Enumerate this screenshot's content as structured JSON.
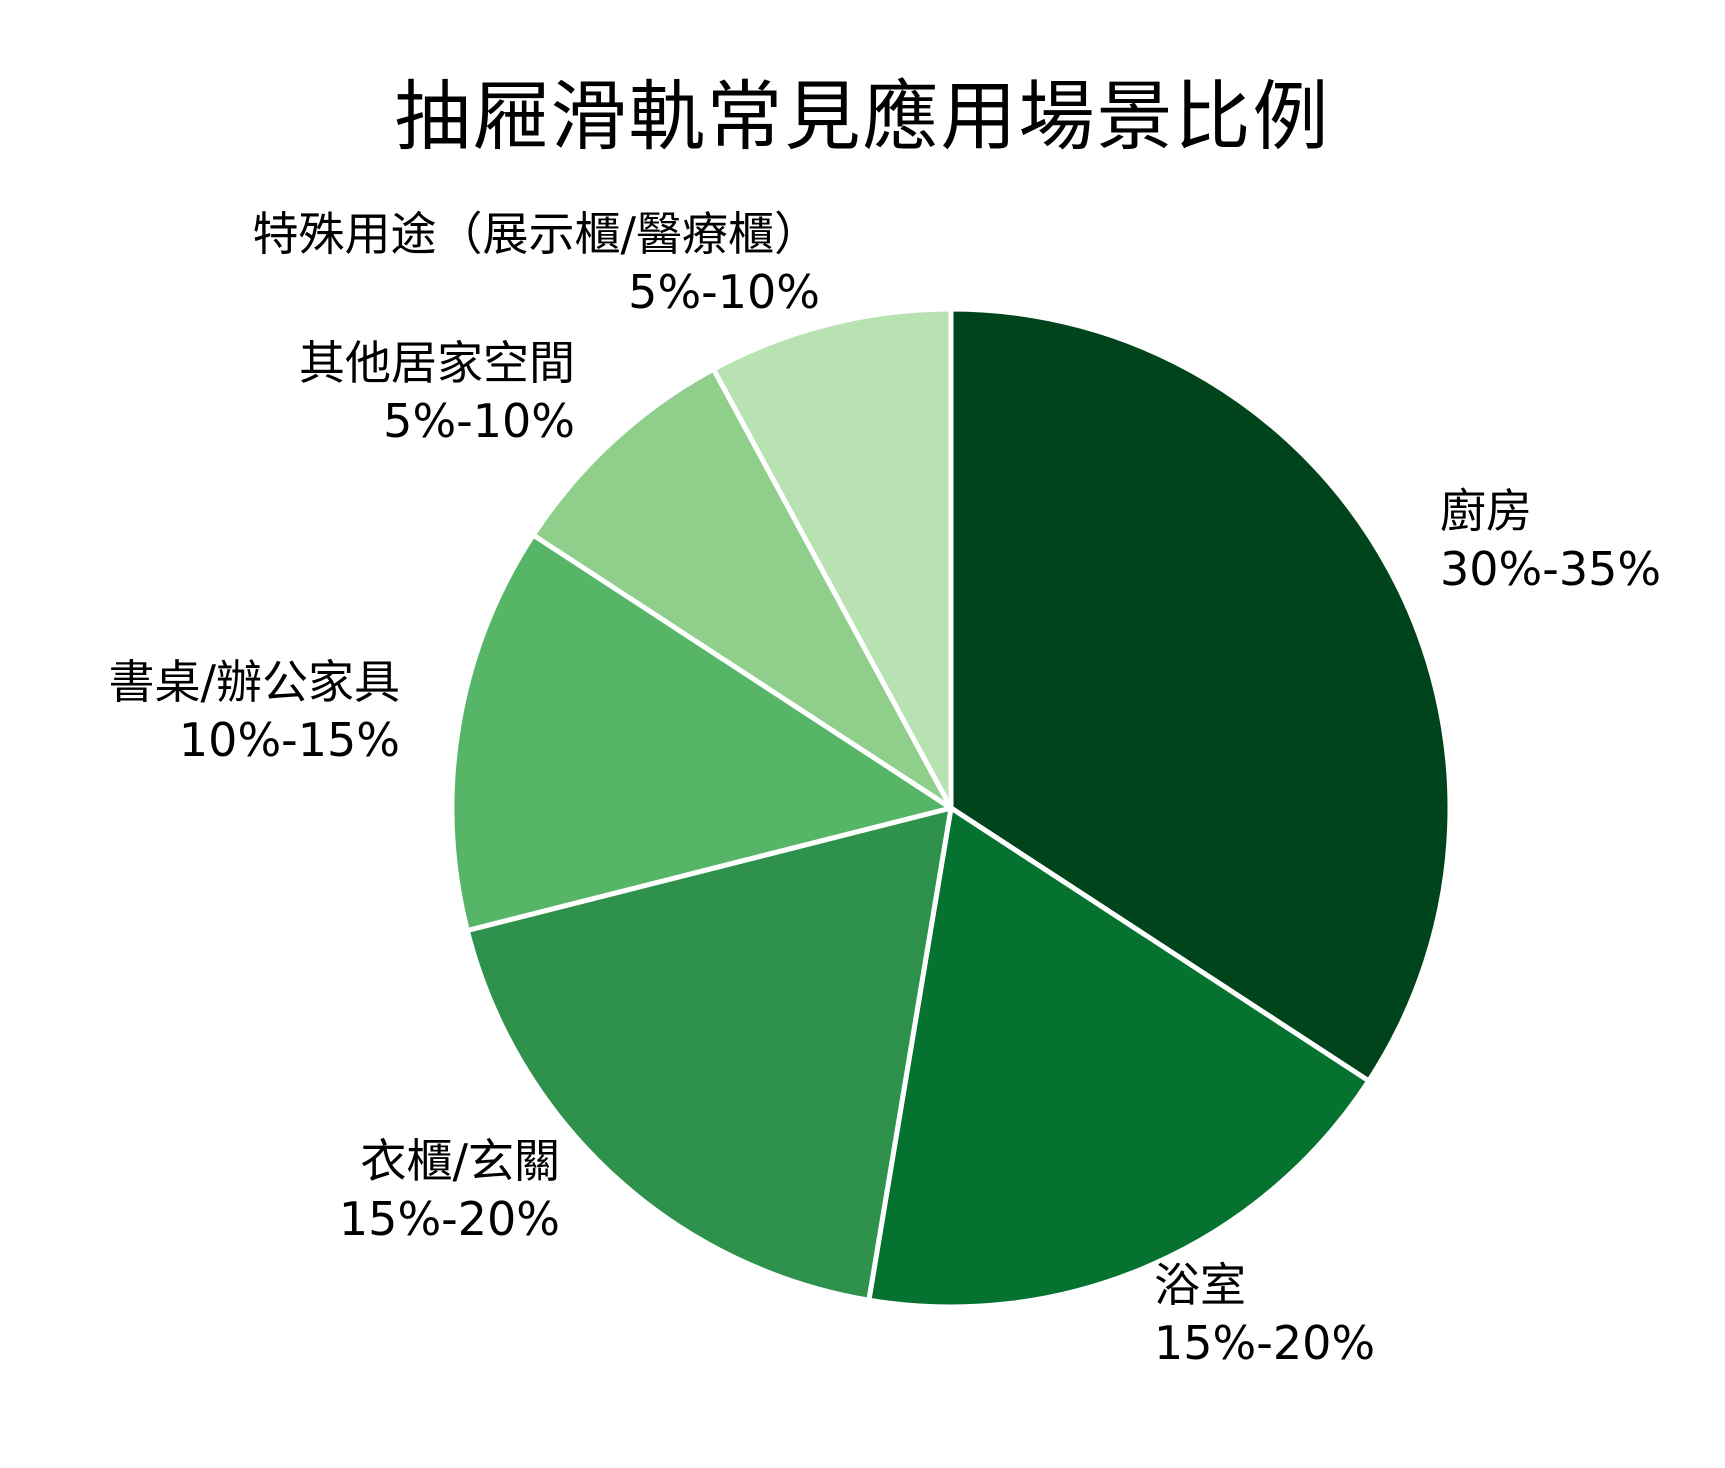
{
  "title": "抽屜滑軌常見應用場景比例",
  "chart_data": {
    "type": "pie",
    "title": "抽屜滑軌常見應用場景比例",
    "start_angle": "12 o'clock, clockwise",
    "categories": [
      "廚房",
      "浴室",
      "衣櫃/玄關",
      "書桌/辦公家具",
      "其他居家空間",
      "特殊用途（展示櫃/醫療櫃）"
    ],
    "ranges": [
      "30%-35%",
      "15%-20%",
      "15%-20%",
      "10%-15%",
      "5%-10%",
      "5%-10%"
    ],
    "values": [
      32.5,
      17.5,
      17.5,
      12.5,
      7.5,
      7.5
    ],
    "colors": [
      "#00441b",
      "#067230",
      "#2e924d",
      "#56b567",
      "#8fcf8b",
      "#b8e2b2"
    ],
    "legend": "none (labels placed beside slices)"
  },
  "labels": [
    {
      "name": "廚房",
      "range": "30%-35%"
    },
    {
      "name": "浴室",
      "range": "15%-20%"
    },
    {
      "name": "衣櫃/玄關",
      "range": "15%-20%"
    },
    {
      "name": "書桌/辦公家具",
      "range": "10%-15%"
    },
    {
      "name": "其他居家空間",
      "range": "5%-10%"
    },
    {
      "name": "特殊用途（展示櫃/醫療櫃）",
      "range": "5%-10%"
    }
  ]
}
